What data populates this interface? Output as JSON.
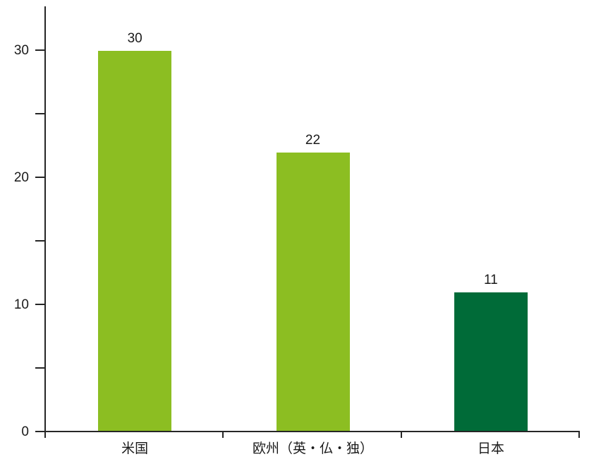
{
  "chart_data": {
    "type": "bar",
    "title": "",
    "xlabel": "",
    "ylabel": "",
    "categories": [
      "米国",
      "欧州（英・仏・独）",
      "日本"
    ],
    "values": [
      30,
      22,
      11
    ],
    "data_labels": [
      "30",
      "22",
      "11"
    ],
    "bar_colors": [
      "#8CBE22",
      "#8CBE22",
      "#006B38"
    ],
    "ylim": [
      0,
      33.5
    ],
    "y_major_ticks": [
      0,
      10,
      20,
      30
    ],
    "y_minor_ticks": [
      5,
      15,
      25
    ],
    "grid": false,
    "legend": false,
    "colors": {
      "light_green": "#8CBE22",
      "dark_green": "#006B38",
      "axis": "#262626",
      "text": "#1a1a1a",
      "background": "#ffffff"
    }
  }
}
